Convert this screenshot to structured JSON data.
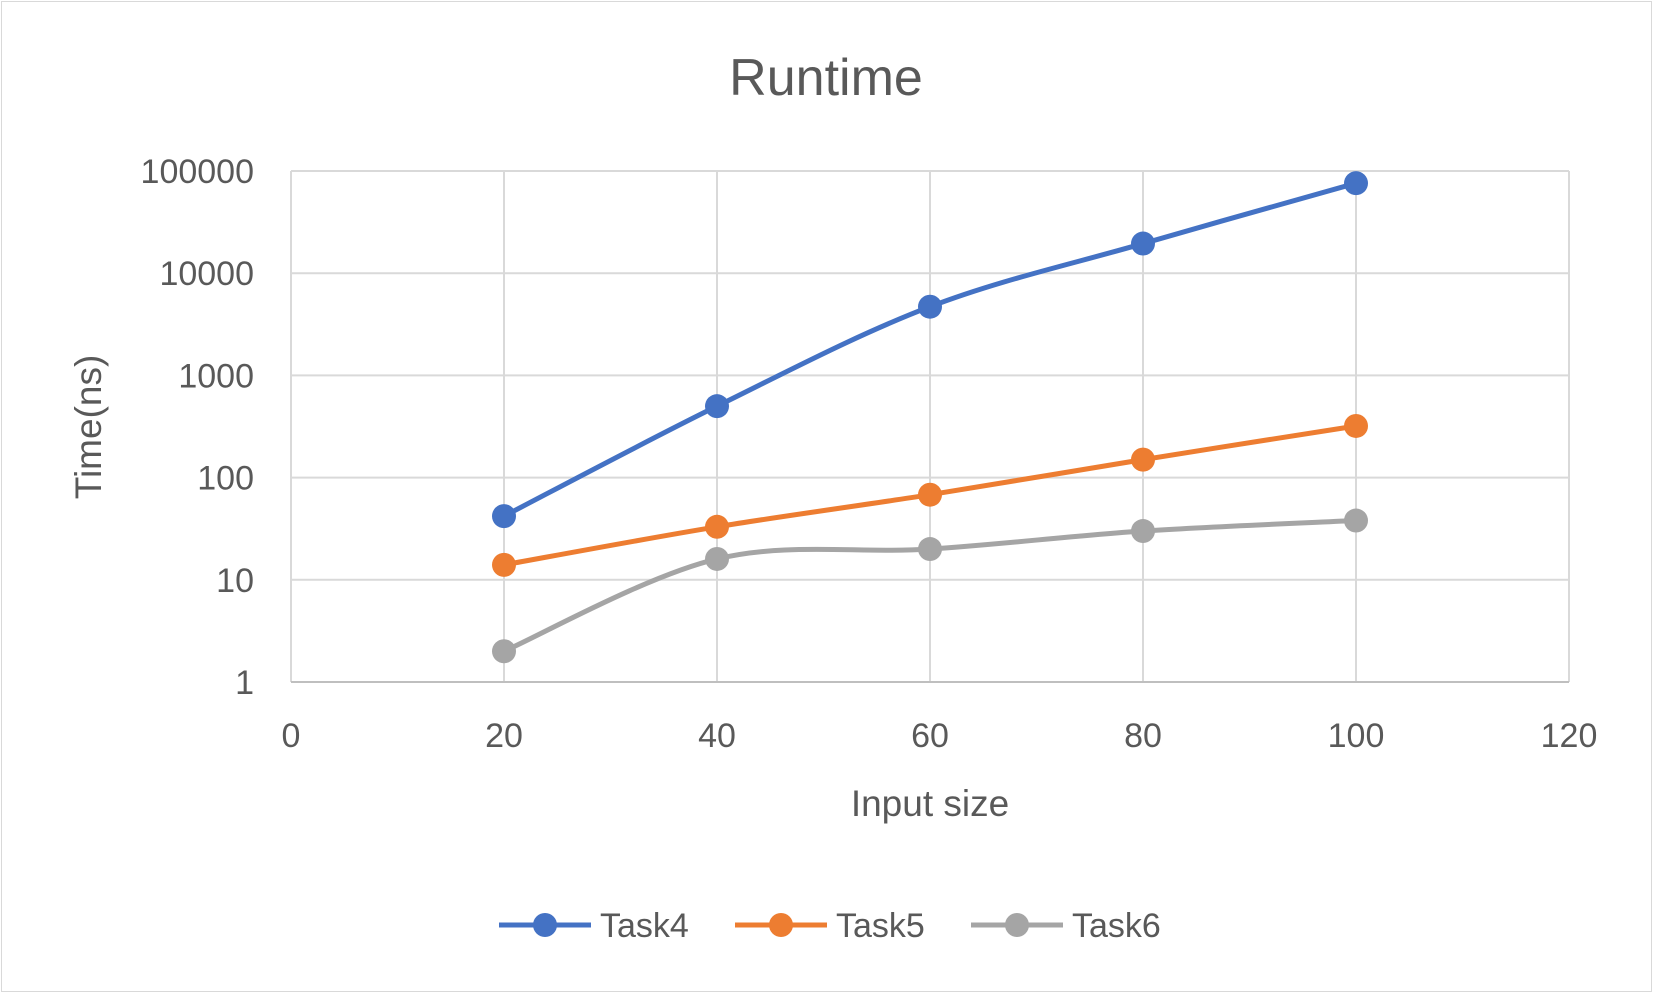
{
  "chart_data": {
    "type": "line",
    "title": "Runtime",
    "xlabel": "Input size",
    "ylabel": "Time(ns)",
    "x_scale": "linear",
    "y_scale": "log",
    "xlim": [
      0,
      120
    ],
    "ylim": [
      1,
      100000
    ],
    "x_ticks": [
      "0",
      "20",
      "40",
      "60",
      "80",
      "100",
      "120"
    ],
    "y_ticks": [
      "1",
      "10",
      "100",
      "1000",
      "10000",
      "100000"
    ],
    "grid": true,
    "legend_position": "bottom",
    "smoothed": true,
    "x": [
      20,
      40,
      60,
      80,
      100
    ],
    "series": [
      {
        "name": "Task4",
        "color": "#4472c4",
        "values": [
          42,
          500,
          4700,
          19500,
          76000
        ]
      },
      {
        "name": "Task5",
        "color": "#ed7d31",
        "values": [
          14,
          33,
          68,
          150,
          320
        ]
      },
      {
        "name": "Task6",
        "color": "#a5a5a5",
        "values": [
          2,
          16,
          20,
          30,
          38
        ]
      }
    ]
  }
}
